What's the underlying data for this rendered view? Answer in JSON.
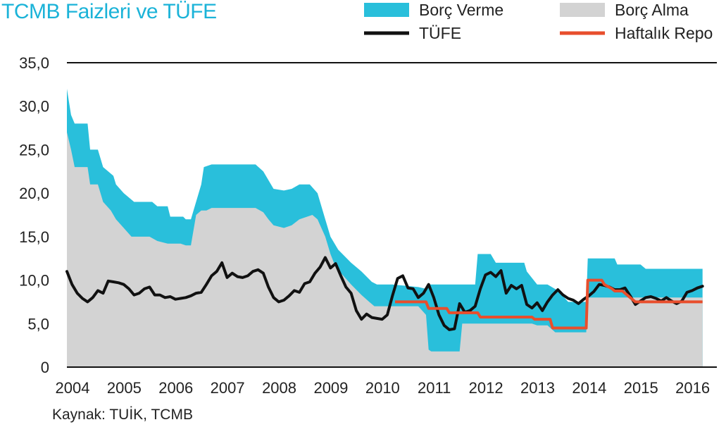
{
  "chart_data": {
    "type": "area",
    "title": "TCMB Faizleri ve TÜFE",
    "source": "Kaynak: TUİK, TCMB",
    "ylim": [
      0,
      35
    ],
    "y_ticks": [
      "0",
      "5,0",
      "10,0",
      "15,0",
      "20,0",
      "25,0",
      "30,0",
      "35,0"
    ],
    "x_ticks": [
      "2004",
      "2005",
      "2006",
      "2007",
      "2008",
      "2009",
      "2010",
      "2011",
      "2012",
      "2013",
      "2014",
      "2015",
      "2016"
    ],
    "xlim": [
      2004.0,
      2016.4
    ],
    "grid": false,
    "legend_position": "top-right",
    "colors": {
      "borc_verme": "#29bfdb",
      "borc_alma": "#d3d3d3",
      "tufe": "#111111",
      "haftalik_repo": "#e84e2c",
      "title": "#1bb3d8"
    },
    "legend": [
      {
        "key": "borc_verme",
        "label": "Borç Verme",
        "kind": "box"
      },
      {
        "key": "borc_alma",
        "label": "Borç Alma",
        "kind": "box"
      },
      {
        "key": "tufe",
        "label": "TÜFE",
        "kind": "line"
      },
      {
        "key": "haftalik_repo",
        "label": "Haftalık Repo",
        "kind": "line"
      }
    ],
    "series": [
      {
        "name": "Borç Verme",
        "key": "borc_verme",
        "kind": "area",
        "points": [
          [
            2004.0,
            32.0
          ],
          [
            2004.08,
            29.0
          ],
          [
            2004.15,
            28.0
          ],
          [
            2004.4,
            28.0
          ],
          [
            2004.45,
            25.0
          ],
          [
            2004.6,
            25.0
          ],
          [
            2004.7,
            23.0
          ],
          [
            2004.9,
            22.0
          ],
          [
            2004.95,
            21.0
          ],
          [
            2005.1,
            20.0
          ],
          [
            2005.3,
            19.0
          ],
          [
            2005.65,
            19.0
          ],
          [
            2005.75,
            18.5
          ],
          [
            2005.95,
            18.5
          ],
          [
            2006.0,
            17.3
          ],
          [
            2006.25,
            17.3
          ],
          [
            2006.3,
            17.0
          ],
          [
            2006.4,
            17.0
          ],
          [
            2006.45,
            18.0
          ],
          [
            2006.6,
            21.0
          ],
          [
            2006.65,
            23.0
          ],
          [
            2006.8,
            23.3
          ],
          [
            2007.2,
            23.3
          ],
          [
            2007.65,
            23.3
          ],
          [
            2007.8,
            22.5
          ],
          [
            2007.9,
            21.5
          ],
          [
            2008.0,
            20.5
          ],
          [
            2008.2,
            20.3
          ],
          [
            2008.35,
            20.5
          ],
          [
            2008.5,
            21.0
          ],
          [
            2008.7,
            21.0
          ],
          [
            2008.85,
            20.0
          ],
          [
            2009.0,
            17.0
          ],
          [
            2009.1,
            15.0
          ],
          [
            2009.25,
            13.5
          ],
          [
            2009.5,
            12.0
          ],
          [
            2009.7,
            11.0
          ],
          [
            2009.9,
            9.8
          ],
          [
            2010.0,
            9.5
          ],
          [
            2010.3,
            9.5
          ],
          [
            2010.8,
            9.2
          ],
          [
            2010.95,
            9.0
          ],
          [
            2011.0,
            9.5
          ],
          [
            2011.9,
            9.5
          ],
          [
            2011.95,
            13.0
          ],
          [
            2012.2,
            13.0
          ],
          [
            2012.3,
            12.0
          ],
          [
            2012.85,
            12.0
          ],
          [
            2012.9,
            11.0
          ],
          [
            2013.1,
            9.5
          ],
          [
            2013.3,
            9.5
          ],
          [
            2013.5,
            8.8
          ],
          [
            2013.7,
            7.5
          ],
          [
            2013.85,
            7.5
          ],
          [
            2014.05,
            7.5
          ],
          [
            2014.08,
            12.5
          ],
          [
            2014.6,
            12.5
          ],
          [
            2014.65,
            11.8
          ],
          [
            2015.1,
            11.8
          ],
          [
            2015.2,
            11.3
          ],
          [
            2016.3,
            11.3
          ]
        ]
      },
      {
        "name": "Borç Alma",
        "key": "borc_alma",
        "kind": "area",
        "points": [
          [
            2004.0,
            27.0
          ],
          [
            2004.08,
            25.0
          ],
          [
            2004.15,
            23.0
          ],
          [
            2004.4,
            23.0
          ],
          [
            2004.45,
            21.0
          ],
          [
            2004.6,
            21.0
          ],
          [
            2004.7,
            19.0
          ],
          [
            2004.85,
            18.0
          ],
          [
            2004.95,
            17.0
          ],
          [
            2005.1,
            16.0
          ],
          [
            2005.25,
            15.0
          ],
          [
            2005.6,
            15.0
          ],
          [
            2005.75,
            14.5
          ],
          [
            2005.95,
            14.2
          ],
          [
            2006.2,
            14.2
          ],
          [
            2006.3,
            14.0
          ],
          [
            2006.4,
            14.0
          ],
          [
            2006.5,
            17.5
          ],
          [
            2006.6,
            18.0
          ],
          [
            2006.7,
            18.0
          ],
          [
            2006.8,
            18.3
          ],
          [
            2007.65,
            18.3
          ],
          [
            2007.8,
            17.8
          ],
          [
            2007.9,
            17.0
          ],
          [
            2008.0,
            16.3
          ],
          [
            2008.2,
            16.0
          ],
          [
            2008.35,
            16.3
          ],
          [
            2008.5,
            17.0
          ],
          [
            2008.75,
            17.5
          ],
          [
            2008.85,
            17.0
          ],
          [
            2009.0,
            15.0
          ],
          [
            2009.1,
            13.0
          ],
          [
            2009.2,
            11.5
          ],
          [
            2009.5,
            9.5
          ],
          [
            2009.7,
            8.3
          ],
          [
            2009.85,
            7.5
          ],
          [
            2009.95,
            7.0
          ],
          [
            2010.8,
            7.0
          ],
          [
            2010.95,
            6.0
          ],
          [
            2011.0,
            2.0
          ],
          [
            2011.05,
            1.8
          ],
          [
            2011.6,
            1.8
          ],
          [
            2011.65,
            5.0
          ],
          [
            2011.85,
            5.0
          ],
          [
            2011.9,
            5.0
          ],
          [
            2013.0,
            5.0
          ],
          [
            2013.1,
            4.8
          ],
          [
            2013.3,
            4.8
          ],
          [
            2013.45,
            4.0
          ],
          [
            2014.05,
            4.0
          ],
          [
            2014.08,
            8.0
          ],
          [
            2016.3,
            8.0
          ]
        ]
      },
      {
        "name": "TÜFE",
        "key": "tufe",
        "kind": "line",
        "points": [
          [
            2004.0,
            11.0
          ],
          [
            2004.1,
            9.5
          ],
          [
            2004.2,
            8.5
          ],
          [
            2004.3,
            7.9
          ],
          [
            2004.4,
            7.5
          ],
          [
            2004.5,
            8.0
          ],
          [
            2004.6,
            8.8
          ],
          [
            2004.7,
            8.5
          ],
          [
            2004.8,
            9.9
          ],
          [
            2004.9,
            9.8
          ],
          [
            2005.0,
            9.7
          ],
          [
            2005.1,
            9.5
          ],
          [
            2005.2,
            9.0
          ],
          [
            2005.3,
            8.3
          ],
          [
            2005.4,
            8.5
          ],
          [
            2005.5,
            9.0
          ],
          [
            2005.6,
            9.2
          ],
          [
            2005.7,
            8.3
          ],
          [
            2005.8,
            8.3
          ],
          [
            2005.9,
            8.0
          ],
          [
            2006.0,
            8.1
          ],
          [
            2006.1,
            7.8
          ],
          [
            2006.2,
            7.9
          ],
          [
            2006.3,
            8.0
          ],
          [
            2006.4,
            8.2
          ],
          [
            2006.5,
            8.5
          ],
          [
            2006.6,
            8.6
          ],
          [
            2006.7,
            9.5
          ],
          [
            2006.8,
            10.5
          ],
          [
            2006.9,
            11.0
          ],
          [
            2007.0,
            12.0
          ],
          [
            2007.1,
            10.3
          ],
          [
            2007.2,
            10.8
          ],
          [
            2007.3,
            10.4
          ],
          [
            2007.4,
            10.3
          ],
          [
            2007.5,
            10.5
          ],
          [
            2007.6,
            11.0
          ],
          [
            2007.7,
            11.2
          ],
          [
            2007.8,
            10.8
          ],
          [
            2007.9,
            9.2
          ],
          [
            2008.0,
            8.0
          ],
          [
            2008.1,
            7.5
          ],
          [
            2008.2,
            7.7
          ],
          [
            2008.3,
            8.2
          ],
          [
            2008.4,
            8.8
          ],
          [
            2008.5,
            8.6
          ],
          [
            2008.6,
            9.6
          ],
          [
            2008.7,
            9.8
          ],
          [
            2008.8,
            10.8
          ],
          [
            2008.9,
            11.5
          ],
          [
            2009.0,
            12.6
          ],
          [
            2009.1,
            11.4
          ],
          [
            2009.2,
            11.9
          ],
          [
            2009.3,
            10.5
          ],
          [
            2009.4,
            9.2
          ],
          [
            2009.5,
            8.5
          ],
          [
            2009.6,
            6.5
          ],
          [
            2009.7,
            5.5
          ],
          [
            2009.8,
            6.1
          ],
          [
            2009.9,
            5.7
          ],
          [
            2010.0,
            5.6
          ],
          [
            2010.1,
            5.5
          ],
          [
            2010.2,
            6.0
          ],
          [
            2010.3,
            8.2
          ],
          [
            2010.4,
            10.2
          ],
          [
            2010.5,
            10.5
          ],
          [
            2010.6,
            9.1
          ],
          [
            2010.7,
            9.0
          ],
          [
            2010.8,
            8.0
          ],
          [
            2010.9,
            8.5
          ],
          [
            2011.0,
            9.5
          ],
          [
            2011.1,
            8.0
          ],
          [
            2011.2,
            6.0
          ],
          [
            2011.3,
            4.8
          ],
          [
            2011.4,
            4.3
          ],
          [
            2011.5,
            4.4
          ],
          [
            2011.6,
            7.3
          ],
          [
            2011.7,
            6.3
          ],
          [
            2011.8,
            6.5
          ],
          [
            2011.9,
            7.0
          ],
          [
            2012.0,
            9.0
          ],
          [
            2012.1,
            10.6
          ],
          [
            2012.2,
            10.9
          ],
          [
            2012.3,
            10.4
          ],
          [
            2012.4,
            11.1
          ],
          [
            2012.5,
            8.5
          ],
          [
            2012.6,
            9.4
          ],
          [
            2012.7,
            9.0
          ],
          [
            2012.8,
            9.4
          ],
          [
            2012.9,
            7.2
          ],
          [
            2013.0,
            6.8
          ],
          [
            2013.1,
            7.4
          ],
          [
            2013.2,
            6.5
          ],
          [
            2013.3,
            7.5
          ],
          [
            2013.4,
            8.3
          ],
          [
            2013.5,
            8.9
          ],
          [
            2013.6,
            8.3
          ],
          [
            2013.7,
            7.9
          ],
          [
            2013.8,
            7.7
          ],
          [
            2013.9,
            7.3
          ],
          [
            2014.0,
            7.8
          ],
          [
            2014.1,
            8.2
          ],
          [
            2014.2,
            8.7
          ],
          [
            2014.3,
            9.5
          ],
          [
            2014.4,
            9.4
          ],
          [
            2014.5,
            9.2
          ],
          [
            2014.6,
            8.9
          ],
          [
            2014.7,
            8.9
          ],
          [
            2014.8,
            9.1
          ],
          [
            2014.9,
            8.2
          ],
          [
            2015.0,
            7.2
          ],
          [
            2015.1,
            7.6
          ],
          [
            2015.2,
            8.0
          ],
          [
            2015.3,
            8.1
          ],
          [
            2015.4,
            7.9
          ],
          [
            2015.5,
            7.6
          ],
          [
            2015.6,
            8.0
          ],
          [
            2015.7,
            7.6
          ],
          [
            2015.8,
            7.3
          ],
          [
            2015.9,
            7.6
          ],
          [
            2016.0,
            8.6
          ],
          [
            2016.1,
            8.8
          ],
          [
            2016.2,
            9.1
          ],
          [
            2016.3,
            9.3
          ]
        ]
      },
      {
        "name": "Haftalık Repo",
        "key": "haftalik_repo",
        "kind": "line",
        "points": [
          [
            2010.35,
            7.5
          ],
          [
            2010.95,
            7.5
          ],
          [
            2011.0,
            6.75
          ],
          [
            2011.35,
            6.75
          ],
          [
            2011.4,
            6.25
          ],
          [
            2011.95,
            6.25
          ],
          [
            2012.0,
            5.75
          ],
          [
            2013.0,
            5.75
          ],
          [
            2013.05,
            5.5
          ],
          [
            2013.35,
            5.5
          ],
          [
            2013.4,
            4.5
          ],
          [
            2014.05,
            4.5
          ],
          [
            2014.08,
            10.0
          ],
          [
            2014.35,
            10.0
          ],
          [
            2014.4,
            9.5
          ],
          [
            2014.55,
            9.0
          ],
          [
            2014.6,
            8.75
          ],
          [
            2014.75,
            8.75
          ],
          [
            2014.85,
            8.25
          ],
          [
            2015.0,
            7.5
          ],
          [
            2016.3,
            7.5
          ]
        ]
      }
    ]
  }
}
